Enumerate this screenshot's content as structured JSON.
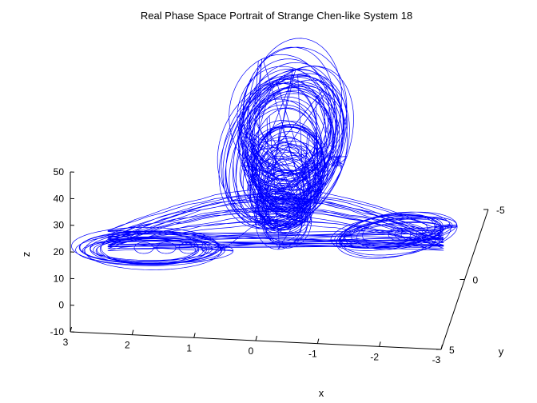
{
  "chart_data": {
    "type": "line",
    "title": "Real Phase Space Portrait of Strange Chen-like System 18",
    "xlabel": "x",
    "ylabel": "y",
    "zlabel": "z",
    "xlim": [
      -3,
      3
    ],
    "ylim": [
      -5,
      5
    ],
    "zlim": [
      -10,
      50
    ],
    "x_ticks": [
      "3",
      "2",
      "1",
      "0",
      "-1",
      "-2",
      "-3"
    ],
    "y_ticks": [
      "-5",
      "0",
      "5"
    ],
    "z_ticks": [
      "50",
      "40",
      "30",
      "20",
      "10",
      "0",
      "-10"
    ],
    "grid": false,
    "series": [
      {
        "color": "#0000ff",
        "shape": "3D attractor trajectory: two flat side loops near z = 20–25 (x ≈ 2.5 and x ≈ -2.5) connected through a central tall funnel reaching z ≈ 75–80"
      }
    ]
  }
}
